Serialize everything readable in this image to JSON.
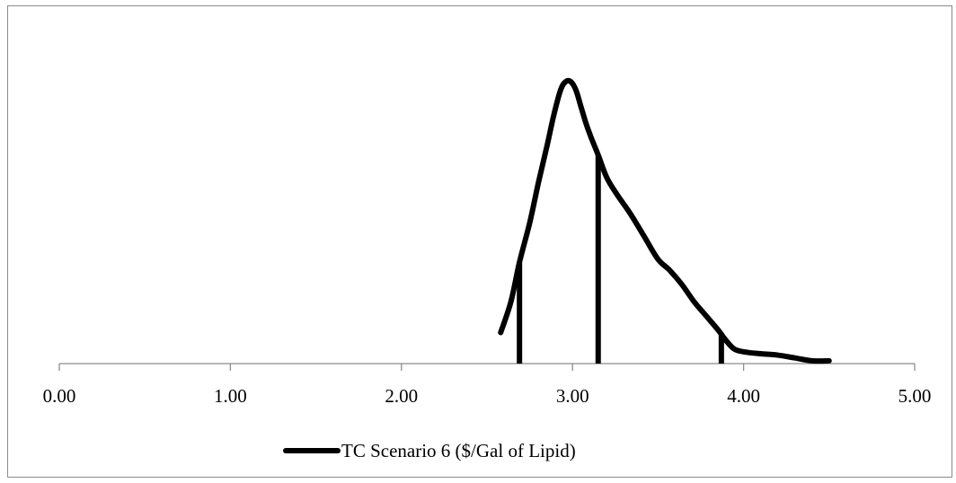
{
  "chart_data": {
    "type": "line",
    "xlim": [
      0,
      5
    ],
    "x_ticks": [
      "0.00",
      "1.00",
      "2.00",
      "3.00",
      "4.00",
      "5.00"
    ],
    "y_axis_visible": false,
    "grid": false,
    "legend_position": "bottom",
    "series": [
      {
        "name": "TC Scenario 6 ($/Gal of Lipid)",
        "color": "#000000",
        "x": [
          2.58,
          2.64,
          2.69,
          2.75,
          2.8,
          2.85,
          2.89,
          2.93,
          2.96,
          2.99,
          3.02,
          3.05,
          3.08,
          3.11,
          3.15,
          3.2,
          3.26,
          3.34,
          3.42,
          3.5,
          3.57,
          3.64,
          3.71,
          3.78,
          3.85,
          3.9,
          3.95,
          4.02,
          4.1,
          4.2,
          4.3,
          4.4,
          4.5
        ],
        "y": [
          0.11,
          0.22,
          0.36,
          0.5,
          0.64,
          0.77,
          0.88,
          0.97,
          1.0,
          1.0,
          0.97,
          0.91,
          0.85,
          0.8,
          0.74,
          0.66,
          0.6,
          0.53,
          0.45,
          0.37,
          0.33,
          0.28,
          0.22,
          0.17,
          0.12,
          0.08,
          0.05,
          0.04,
          0.035,
          0.03,
          0.02,
          0.01,
          0.01
        ]
      }
    ],
    "markers": [
      {
        "x": 2.69
      },
      {
        "x": 3.15
      },
      {
        "x": 3.87
      }
    ]
  }
}
